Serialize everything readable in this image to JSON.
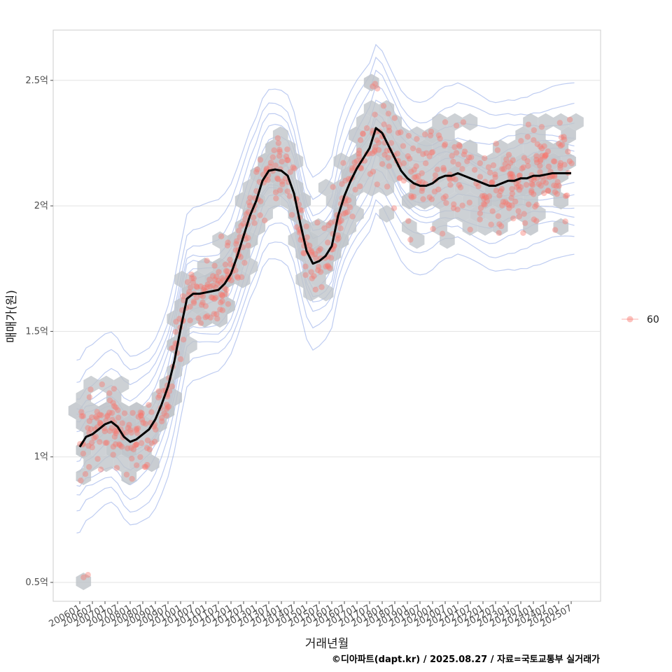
{
  "chart_data": {
    "type": "scatter",
    "title": "",
    "xlabel": "거래년월",
    "ylabel": "매매가(원)",
    "x_ticks": [
      "200601",
      "200607",
      "200701",
      "200707",
      "200801",
      "200807",
      "200901",
      "200907",
      "201001",
      "201007",
      "201101",
      "201107",
      "201201",
      "201207",
      "201301",
      "201307",
      "201401",
      "201407",
      "201501",
      "201507",
      "201601",
      "201607",
      "201701",
      "201707",
      "201801",
      "201807",
      "201901",
      "201907",
      "202001",
      "202007",
      "202101",
      "202107",
      "202201",
      "202207",
      "202301",
      "202307",
      "202401",
      "202407",
      "202501",
      "202507"
    ],
    "y_ticks": [
      {
        "value": 0.5,
        "label": "0.5억"
      },
      {
        "value": 1.0,
        "label": "1억"
      },
      {
        "value": 1.5,
        "label": "1.5억"
      },
      {
        "value": 2.0,
        "label": "2억"
      },
      {
        "value": 2.5,
        "label": "2.5억"
      }
    ],
    "ylim": [
      0.43,
      2.7
    ],
    "legend": {
      "position": "right",
      "entries": [
        {
          "label": "60",
          "color": "#f8766d"
        }
      ]
    },
    "series": [
      {
        "name": "trend",
        "type": "line",
        "color": "#000000",
        "x": [
          0,
          1,
          2,
          3,
          4,
          5,
          6,
          7,
          8,
          9,
          10,
          11,
          12,
          13,
          14,
          15,
          16,
          17,
          18,
          19,
          20,
          21,
          22,
          23,
          24,
          25,
          26,
          27,
          28,
          29,
          30,
          31,
          32,
          33,
          34,
          35,
          36,
          37,
          38,
          39,
          40,
          41,
          42,
          43,
          44,
          45,
          46,
          47,
          48,
          49,
          50,
          51,
          52,
          53,
          54,
          55,
          56,
          57,
          58,
          59,
          60,
          61,
          62,
          63,
          64,
          65,
          66,
          67,
          68,
          69,
          70,
          71,
          72,
          73,
          74,
          75,
          76,
          77,
          78
        ],
        "y": [
          1.04,
          1.08,
          1.09,
          1.11,
          1.13,
          1.14,
          1.12,
          1.08,
          1.06,
          1.07,
          1.09,
          1.11,
          1.15,
          1.21,
          1.28,
          1.38,
          1.51,
          1.63,
          1.65,
          1.65,
          1.655,
          1.66,
          1.665,
          1.69,
          1.73,
          1.8,
          1.88,
          1.96,
          2.02,
          2.1,
          2.14,
          2.145,
          2.14,
          2.12,
          2.05,
          1.93,
          1.82,
          1.77,
          1.78,
          1.8,
          1.84,
          1.96,
          2.04,
          2.1,
          2.15,
          2.19,
          2.23,
          2.31,
          2.29,
          2.24,
          2.19,
          2.14,
          2.11,
          2.09,
          2.08,
          2.08,
          2.09,
          2.11,
          2.12,
          2.12,
          2.13,
          2.12,
          2.11,
          2.1,
          2.09,
          2.08,
          2.08,
          2.09,
          2.1,
          2.1,
          2.11,
          2.11,
          2.12,
          2.12,
          2.125,
          2.13,
          2.13,
          2.13,
          2.13
        ]
      }
    ],
    "point_color": "#f8766d",
    "hex_color": "#bfc4c9",
    "contour_color": "#6f8fe0",
    "caption": "©디아파트(dapt.kr) / 2025.08.27 / 자료=국토교통부 실거래가"
  }
}
